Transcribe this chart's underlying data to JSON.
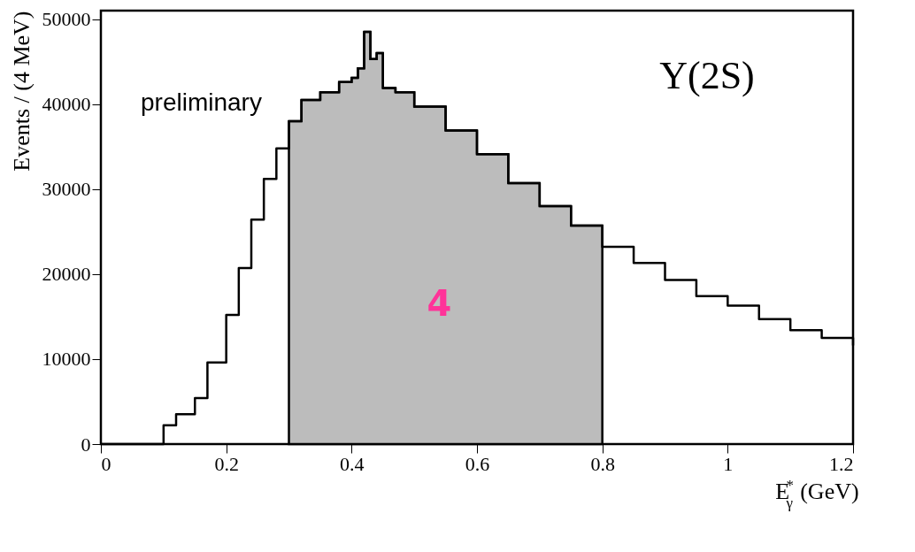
{
  "chart_data": {
    "type": "step",
    "xlabel": "E$^{*}$$_{γ}$ (GeV)",
    "ylabel": "Events / (4 MeV)",
    "annotations": [
      "preliminary",
      "Υ(2S)",
      "4"
    ],
    "series": [
      {
        "color": "#000000",
        "x": [
          0.0,
          0.08,
          0.1,
          0.12,
          0.15,
          0.17,
          0.2,
          0.22,
          0.24,
          0.26,
          0.28,
          0.3,
          0.32,
          0.35,
          0.38,
          0.4,
          0.41,
          0.42,
          0.43,
          0.44,
          0.45,
          0.47,
          0.5,
          0.55,
          0.6,
          0.65,
          0.7,
          0.75,
          0.8,
          0.85,
          0.9,
          0.95,
          1.0,
          1.05,
          1.1,
          1.15,
          1.2
        ],
        "values": [
          0,
          0,
          2200,
          3500,
          5400,
          9600,
          15200,
          20700,
          26400,
          31200,
          34800,
          38000,
          40500,
          41400,
          42600,
          43100,
          44200,
          48500,
          45300,
          46000,
          41900,
          41400,
          39700,
          36900,
          34100,
          30700,
          28000,
          25700,
          23200,
          21300,
          19300,
          17400,
          16300,
          14700,
          13400,
          12500,
          11600
        ]
      },
      {
        "type": "area",
        "color": "#bcbcbc",
        "x": [
          0.3,
          0.32,
          0.35,
          0.38,
          0.4,
          0.41,
          0.42,
          0.43,
          0.44,
          0.45,
          0.47,
          0.5,
          0.55,
          0.6,
          0.65,
          0.7,
          0.75,
          0.8
        ],
        "values": [
          38000,
          40500,
          41400,
          42600,
          43100,
          44200,
          48500,
          45300,
          46000,
          41900,
          41400,
          39700,
          36900,
          34100,
          30700,
          28000,
          25700,
          23200
        ]
      }
    ],
    "xlim": [
      0,
      1.2
    ],
    "xticks": [
      0,
      0.2,
      0.4,
      0.6,
      0.8,
      1,
      1.2
    ],
    "ylim": [
      0,
      51000
    ],
    "yticks": [
      0,
      10000,
      20000,
      30000,
      40000,
      50000
    ],
    "grid": false
  }
}
